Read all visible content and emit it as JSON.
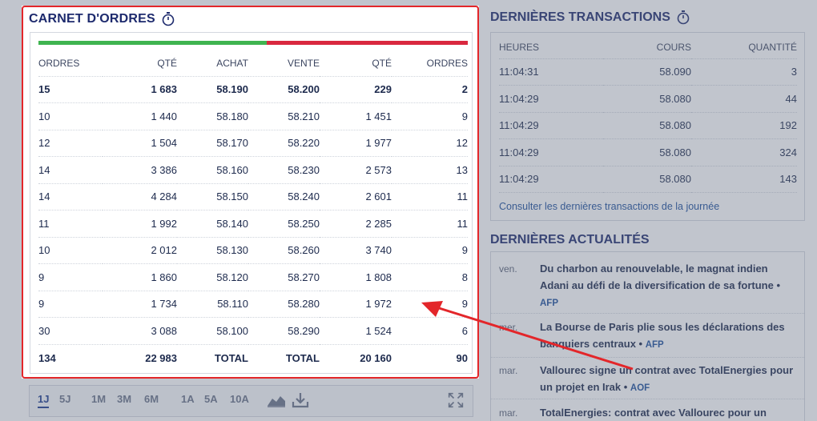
{
  "order_book": {
    "title": "CARNET D'ORDRES",
    "headers": [
      "ORDRES",
      "QTÉ",
      "ACHAT",
      "VENTE",
      "QTÉ",
      "ORDRES"
    ],
    "rows": [
      [
        "15",
        "1 683",
        "58.190",
        "58.200",
        "229",
        "2"
      ],
      [
        "10",
        "1 440",
        "58.180",
        "58.210",
        "1 451",
        "9"
      ],
      [
        "12",
        "1 504",
        "58.170",
        "58.220",
        "1 977",
        "12"
      ],
      [
        "14",
        "3 386",
        "58.160",
        "58.230",
        "2 573",
        "13"
      ],
      [
        "14",
        "4 284",
        "58.150",
        "58.240",
        "2 601",
        "11"
      ],
      [
        "11",
        "1 992",
        "58.140",
        "58.250",
        "2 285",
        "11"
      ],
      [
        "10",
        "2 012",
        "58.130",
        "58.260",
        "3 740",
        "9"
      ],
      [
        "9",
        "1 860",
        "58.120",
        "58.270",
        "1 808",
        "8"
      ],
      [
        "9",
        "1 734",
        "58.110",
        "58.280",
        "1 972",
        "9"
      ],
      [
        "30",
        "3 088",
        "58.100",
        "58.290",
        "1 524",
        "6"
      ]
    ],
    "total": [
      "134",
      "22 983",
      "TOTAL",
      "TOTAL",
      "20 160",
      "90"
    ],
    "buy_color": "#3fb450",
    "sell_color": "#d9283f"
  },
  "periods": [
    "1J",
    "5J",
    "1M",
    "3M",
    "6M",
    "1A",
    "5A",
    "10A"
  ],
  "active_period": "1J",
  "transactions": {
    "title": "DERNIÈRES TRANSACTIONS",
    "headers": [
      "HEURES",
      "COURS",
      "QUANTITÉ"
    ],
    "rows": [
      [
        "11:04:31",
        "58.090",
        "3"
      ],
      [
        "11:04:29",
        "58.080",
        "44"
      ],
      [
        "11:04:29",
        "58.080",
        "192"
      ],
      [
        "11:04:29",
        "58.080",
        "324"
      ],
      [
        "11:04:29",
        "58.080",
        "143"
      ]
    ],
    "link": "Consulter les dernières transactions de la journée"
  },
  "news": {
    "title": "DERNIÈRES ACTUALITÉS",
    "items": [
      {
        "day": "ven.",
        "headline": "Du charbon au renouvelable, le magnat indien Adani au défi de la diversification de sa fortune",
        "source": "AFP"
      },
      {
        "day": "mer.",
        "headline": "La Bourse de Paris plie sous les déclarations des banquiers centraux",
        "source": "AFP"
      },
      {
        "day": "mar.",
        "headline": "Vallourec signe un contrat avec TotalEnergies pour un projet en Irak",
        "source": "AOF"
      },
      {
        "day": "mar.",
        "headline": "TotalEnergies: contrat avec Vallourec pour un",
        "source": ""
      }
    ]
  },
  "colors": {
    "highlight_border": "#e3262a",
    "arrow": "#e3262a",
    "title": "#1d2a6d",
    "link": "#1d4f9c"
  }
}
